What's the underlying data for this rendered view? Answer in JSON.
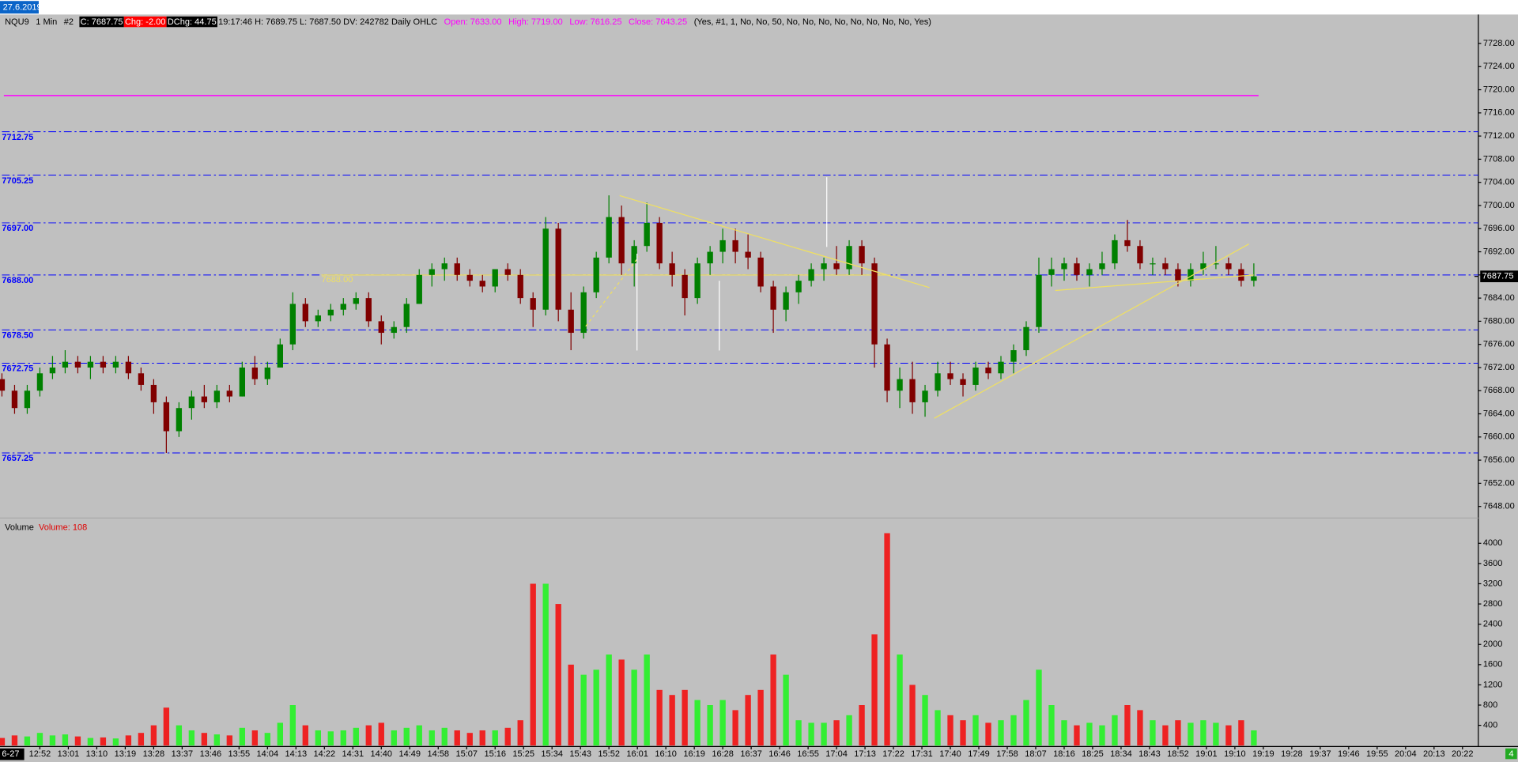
{
  "chart_data": {
    "type": "candlestick",
    "date_badge": "27.6.2019",
    "header": [
      {
        "text": "NQU9",
        "color": "#000000"
      },
      {
        "text": "1 Min",
        "color": "#000000"
      },
      {
        "text": "#2",
        "color": "#000000"
      },
      {
        "text": "C: 7687.75",
        "color": "#ffffff",
        "bg": "#000000"
      },
      {
        "text": "Chg: -2.00",
        "color": "#ffffff",
        "bg": "#ff0000"
      },
      {
        "text": "DChg: 44.75",
        "color": "#ffffff",
        "bg": "#000000"
      },
      {
        "text": "19:17:46 H: 7689.75 L: 7687.50 DV: 242782 Daily OHLC",
        "color": "#000000"
      },
      {
        "text": "Open: 7633.00",
        "color": "#ff00ff"
      },
      {
        "text": "High: 7719.00",
        "color": "#ff00ff"
      },
      {
        "text": "Low: 7616.25",
        "color": "#ff00ff"
      },
      {
        "text": "Close: 7643.25",
        "color": "#ff00ff"
      },
      {
        "text": "(Yes, #1, 1, No, No, 50, No, No, No, No, No, No, No, No, Yes)",
        "color": "#000000"
      }
    ],
    "daily_high_line": 7719,
    "daily_high_color": "#ff00ff",
    "levels": [
      {
        "value": 7712.75,
        "label": "7712.75"
      },
      {
        "value": 7705.25,
        "label": "7705.25"
      },
      {
        "value": 7697,
        "label": "7697.00"
      },
      {
        "value": 7688,
        "label": "7688.00"
      },
      {
        "value": 7678.5,
        "label": "7678.50"
      },
      {
        "value": 7672.75,
        "label": "7672.75"
      },
      {
        "value": 7657.25,
        "label": "7657.25"
      }
    ],
    "level_color": "#0000ff",
    "annotation": {
      "value": 7688,
      "label": "7688.00"
    },
    "last_price": {
      "value": 7687.75,
      "label": "7687.75"
    },
    "up_color": "#008000",
    "down_color": "#800000",
    "ylim": [
      7646,
      7733
    ],
    "yticks": [
      {
        "value": 7728,
        "label": "7728.00"
      },
      {
        "value": 7724,
        "label": "7724.00"
      },
      {
        "value": 7720,
        "label": "7720.00"
      },
      {
        "value": 7716,
        "label": "7716.00"
      },
      {
        "value": 7712,
        "label": "7712.00"
      },
      {
        "value": 7708,
        "label": "7708.00"
      },
      {
        "value": 7704,
        "label": "7704.00"
      },
      {
        "value": 7700,
        "label": "7700.00"
      },
      {
        "value": 7696,
        "label": "7696.00"
      },
      {
        "value": 7692,
        "label": "7692.00"
      },
      {
        "value": 7688,
        "label": "7688.00"
      },
      {
        "value": 7684,
        "label": "7684.00"
      },
      {
        "value": 7680,
        "label": "7680.00"
      },
      {
        "value": 7676,
        "label": "7676.00"
      },
      {
        "value": 7672,
        "label": "7672.00"
      },
      {
        "value": 7668,
        "label": "7668.00"
      },
      {
        "value": 7664,
        "label": "7664.00"
      },
      {
        "value": 7660,
        "label": "7660.00"
      },
      {
        "value": 7656,
        "label": "7656.00"
      },
      {
        "value": 7652,
        "label": "7652.00"
      },
      {
        "value": 7648,
        "label": "7648.00"
      }
    ],
    "xlim": [
      "12:40",
      "20:27"
    ],
    "xticks": [
      "12:52",
      "13:01",
      "13:10",
      "13:19",
      "13:28",
      "13:37",
      "13:46",
      "13:55",
      "14:04",
      "14:13",
      "14:22",
      "14:31",
      "14:40",
      "14:49",
      "14:58",
      "15:07",
      "15:16",
      "15:25",
      "15:34",
      "15:43",
      "15:52",
      "16:01",
      "16:10",
      "16:19",
      "16:28",
      "16:37",
      "16:46",
      "16:55",
      "17:04",
      "17:13",
      "17:22",
      "17:31",
      "17:40",
      "17:49",
      "17:58",
      "18:07",
      "18:16",
      "18:25",
      "18:34",
      "18:43",
      "18:52",
      "19:01",
      "19:10",
      "19:19",
      "19:28",
      "19:37",
      "19:46",
      "19:55",
      "20:04",
      "20:13",
      "20:22"
    ],
    "date_label": "6-27",
    "corner_label": "4",
    "x": [
      "12:40",
      "12:44",
      "12:48",
      "12:52",
      "12:56",
      "13:00",
      "13:04",
      "13:08",
      "13:12",
      "13:16",
      "13:20",
      "13:24",
      "13:28",
      "13:32",
      "13:36",
      "13:40",
      "13:44",
      "13:48",
      "13:52",
      "13:56",
      "14:00",
      "14:04",
      "14:08",
      "14:12",
      "14:16",
      "14:20",
      "14:24",
      "14:28",
      "14:32",
      "14:36",
      "14:40",
      "14:44",
      "14:48",
      "14:52",
      "14:56",
      "15:00",
      "15:04",
      "15:08",
      "15:12",
      "15:16",
      "15:20",
      "15:24",
      "15:28",
      "15:32",
      "15:36",
      "15:40",
      "15:44",
      "15:48",
      "15:52",
      "15:56",
      "16:00",
      "16:04",
      "16:08",
      "16:12",
      "16:16",
      "16:20",
      "16:24",
      "16:28",
      "16:32",
      "16:36",
      "16:40",
      "16:44",
      "16:48",
      "16:52",
      "16:56",
      "17:00",
      "17:04",
      "17:08",
      "17:12",
      "17:16",
      "17:20",
      "17:24",
      "17:28",
      "17:32",
      "17:36",
      "17:40",
      "17:44",
      "17:48",
      "17:52",
      "17:56",
      "18:00",
      "18:04",
      "18:08",
      "18:12",
      "18:16",
      "18:20",
      "18:24",
      "18:28",
      "18:32",
      "18:36",
      "18:40",
      "18:44",
      "18:48",
      "18:52",
      "18:56",
      "19:00",
      "19:04",
      "19:08",
      "19:12",
      "19:16"
    ],
    "open": [
      7670,
      7668,
      7665,
      7668,
      7671,
      7672,
      7673,
      7672,
      7673,
      7672,
      7673,
      7671,
      7669,
      7666,
      7661,
      7665,
      7667,
      7666,
      7668,
      7667,
      7672,
      7670,
      7672,
      7676,
      7683,
      7680,
      7681,
      7682,
      7683,
      7684,
      7680,
      7678,
      7679,
      7683,
      7688,
      7689,
      7690,
      7688,
      7687,
      7686,
      7689,
      7688,
      7684,
      7682,
      7696,
      7682,
      7678,
      7685,
      7691,
      7698,
      7690,
      7693,
      7697,
      7690,
      7688,
      7684,
      7690,
      7692,
      7694,
      7692,
      7691,
      7686,
      7682,
      7685,
      7687,
      7689,
      7690,
      7689,
      7693,
      7690,
      7676,
      7668,
      7670,
      7666,
      7668,
      7671,
      7670,
      7669,
      7672,
      7671,
      7673,
      7675,
      7679,
      7688,
      7689,
      7690,
      7688,
      7689,
      7690,
      7694,
      7693,
      7690,
      7690,
      7689,
      7687,
      7689,
      7690,
      7690,
      7689,
      7687
    ],
    "high": [
      7671,
      7669,
      7669,
      7672,
      7674,
      7675,
      7674,
      7674,
      7674,
      7674,
      7674,
      7672,
      7670,
      7667,
      7666,
      7668,
      7669,
      7669,
      7669,
      7673,
      7674,
      7673,
      7677,
      7685,
      7684,
      7682,
      7683,
      7684,
      7685,
      7685,
      7681,
      7680,
      7684,
      7689,
      7690,
      7691,
      7691,
      7689,
      7688,
      7689,
      7690,
      7689,
      7685,
      7698,
      7697,
      7685,
      7686,
      7692,
      7701.75,
      7700,
      7694,
      7700.5,
      7698,
      7692,
      7689,
      7691,
      7693,
      7696,
      7696,
      7695,
      7692,
      7687,
      7686,
      7688,
      7690,
      7691,
      7693,
      7694,
      7694,
      7691,
      7677,
      7672,
      7673,
      7669,
      7673,
      7673,
      7671,
      7673,
      7673,
      7674,
      7676,
      7680,
      7691,
      7691,
      7691,
      7691,
      7690,
      7692,
      7695,
      7697.5,
      7694,
      7691,
      7691,
      7690,
      7690,
      7692,
      7693,
      7691,
      7690,
      7690
    ],
    "low": [
      7667,
      7664,
      7664,
      7667,
      7670,
      7671,
      7671,
      7670,
      7671,
      7671,
      7670,
      7668,
      7664,
      7657.25,
      7660,
      7663,
      7665,
      7665,
      7666,
      7667,
      7669,
      7669,
      7672,
      7675,
      7679,
      7679,
      7680,
      7681,
      7682,
      7679,
      7676,
      7677,
      7678,
      7683,
      7686,
      7687,
      7687,
      7686,
      7685,
      7685,
      7687,
      7683,
      7679,
      7681,
      7680,
      7675,
      7677,
      7684,
      7690,
      7688,
      7686,
      7692,
      7689,
      7686,
      7681,
      7683,
      7688,
      7690,
      7690,
      7689,
      7685,
      7678,
      7680,
      7683,
      7686,
      7687,
      7688,
      7688,
      7688,
      7672,
      7666,
      7665,
      7664,
      7663.5,
      7667,
      7669,
      7667,
      7668,
      7670,
      7670,
      7671,
      7674,
      7678,
      7686,
      7687,
      7687,
      7686,
      7688,
      7689,
      7692,
      7689,
      7688,
      7688,
      7686,
      7686,
      7688,
      7689,
      7688,
      7686,
      7686
    ],
    "close": [
      7668,
      7665,
      7668,
      7671,
      7672,
      7673,
      7672,
      7673,
      7672,
      7673,
      7671,
      7669,
      7666,
      7661,
      7665,
      7667,
      7666,
      7668,
      7667,
      7672,
      7670,
      7672,
      7676,
      7683,
      7680,
      7681,
      7682,
      7683,
      7684,
      7680,
      7678,
      7679,
      7683,
      7688,
      7689,
      7690,
      7688,
      7687,
      7686,
      7689,
      7688,
      7684,
      7682,
      7696,
      7682,
      7678,
      7685,
      7691,
      7698,
      7690,
      7693,
      7697,
      7690,
      7688,
      7684,
      7690,
      7692,
      7694,
      7692,
      7691,
      7686,
      7682,
      7685,
      7687,
      7689,
      7690,
      7689,
      7693,
      7690,
      7676,
      7668,
      7670,
      7666,
      7668,
      7671,
      7670,
      7669,
      7672,
      7671,
      7673,
      7675,
      7679,
      7688,
      7689,
      7690,
      7688,
      7689,
      7690,
      7694,
      7693,
      7690,
      7690,
      7689,
      7687,
      7689,
      7690,
      7690,
      7689,
      7687,
      7687.75
    ],
    "volume_panel": {
      "title": "Volume",
      "subtitle": "Volume: 108",
      "up_color": "#33ee33",
      "down_color": "#ee2222",
      "ylim": [
        0,
        4500
      ],
      "yticks": [
        400,
        800,
        1200,
        1600,
        2000,
        2400,
        2800,
        3200,
        3600,
        4000
      ],
      "values": [
        150,
        200,
        180,
        250,
        200,
        220,
        180,
        150,
        160,
        140,
        200,
        250,
        400,
        750,
        400,
        300,
        250,
        220,
        200,
        350,
        300,
        250,
        450,
        800,
        400,
        300,
        280,
        300,
        350,
        400,
        450,
        300,
        350,
        400,
        300,
        350,
        300,
        250,
        300,
        300,
        350,
        500,
        3200,
        3200,
        2800,
        1600,
        1400,
        1500,
        1800,
        1700,
        1500,
        1800,
        1100,
        1000,
        1100,
        900,
        800,
        900,
        700,
        1000,
        1100,
        1800,
        1400,
        500,
        450,
        450,
        500,
        600,
        800,
        2200,
        4200,
        1800,
        1200,
        1000,
        700,
        600,
        500,
        600,
        450,
        500,
        600,
        900,
        1500,
        800,
        500,
        400,
        450,
        400,
        600,
        800,
        700,
        500,
        400,
        500,
        450,
        500,
        450,
        400,
        500,
        300
      ]
    }
  }
}
